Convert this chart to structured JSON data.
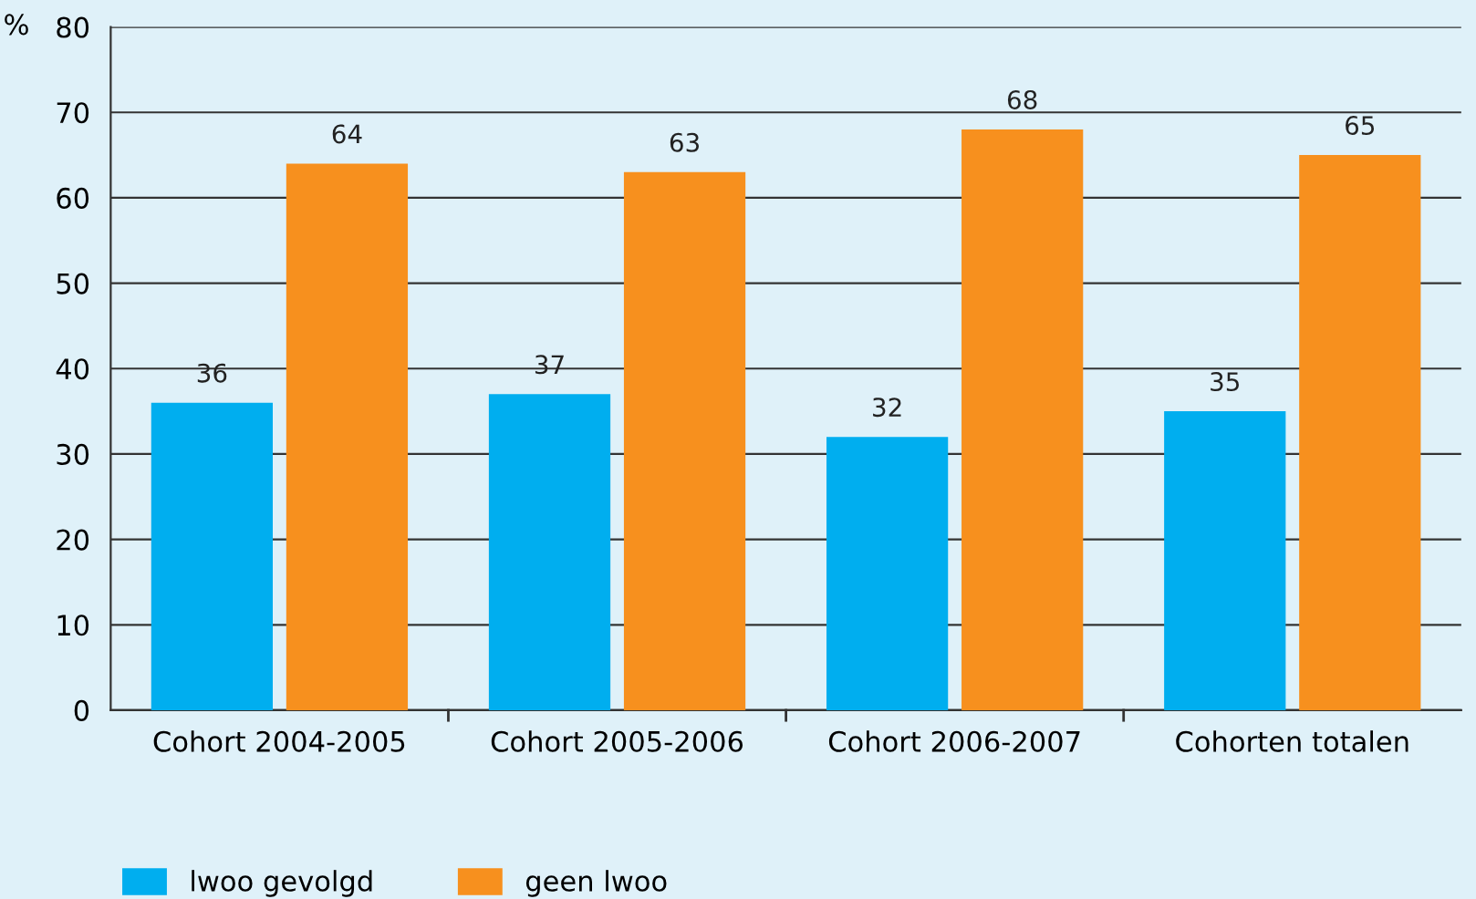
{
  "chart_data": {
    "type": "bar",
    "ylabel": "%",
    "categories": [
      "Cohort 2004-2005",
      "Cohort 2005-2006",
      "Cohort 2006-2007",
      "Cohorten totalen"
    ],
    "series": [
      {
        "name": "lwoo gevolgd",
        "color": "#00aeef",
        "values": [
          36,
          37,
          32,
          35
        ]
      },
      {
        "name": "geen lwoo",
        "color": "#f7901e",
        "values": [
          64,
          63,
          68,
          65
        ]
      }
    ],
    "ylim": [
      0,
      80
    ],
    "yticks": [
      0,
      10,
      20,
      30,
      40,
      50,
      60,
      70,
      80
    ],
    "grid": "y",
    "legend": "bottom left",
    "data_labels": true
  }
}
